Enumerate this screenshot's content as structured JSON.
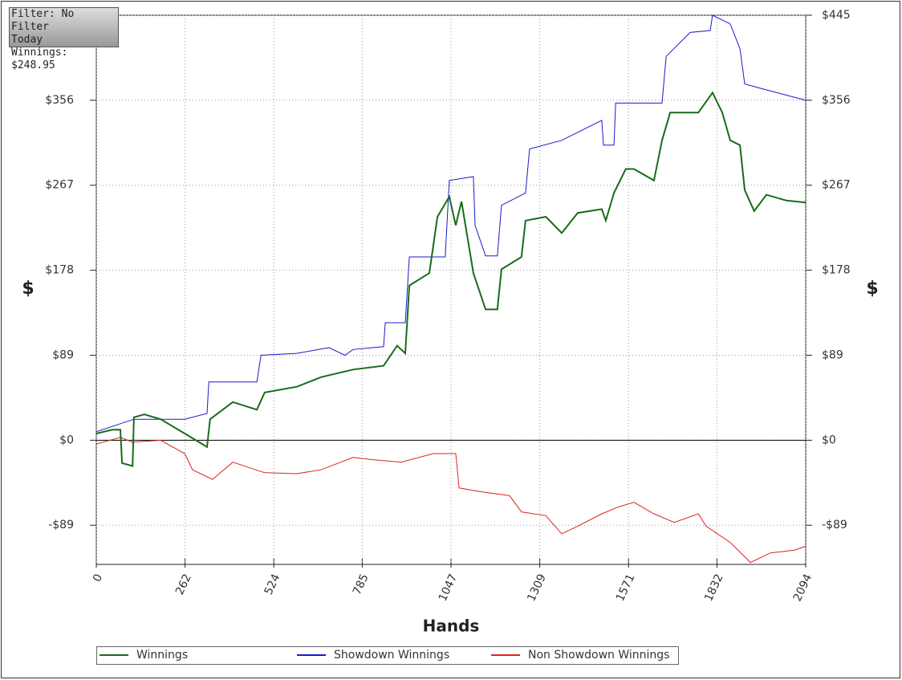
{
  "chart_data": {
    "type": "line",
    "overlay": [
      "Filter: No Filter",
      "Today",
      "Winnings: $248.95"
    ],
    "xlabel": "Hands",
    "ylabel": "$",
    "y2label": "$",
    "xlim": [
      0,
      2094
    ],
    "xticks": [
      0,
      262,
      524,
      785,
      1047,
      1309,
      1571,
      1832,
      2094
    ],
    "ylim": [
      -130,
      445
    ],
    "yticks": [
      {
        "value": -89,
        "label": "-$89"
      },
      {
        "value": 0,
        "label": "$0"
      },
      {
        "value": 89,
        "label": "$89"
      },
      {
        "value": 178,
        "label": "$178"
      },
      {
        "value": 267,
        "label": "$267"
      },
      {
        "value": 356,
        "label": "$356"
      },
      {
        "value": 445,
        "label": "$445"
      }
    ],
    "y2lim": [
      -130,
      445
    ],
    "y2ticks": [
      {
        "value": -89,
        "label": "-$89"
      },
      {
        "value": 0,
        "label": "$0"
      },
      {
        "value": 89,
        "label": "$89"
      },
      {
        "value": 178,
        "label": "$178"
      },
      {
        "value": 267,
        "label": "$267"
      },
      {
        "value": 356,
        "label": "$356"
      },
      {
        "value": 445,
        "label": "$445"
      }
    ],
    "grid": true,
    "legend": "bottom",
    "series": [
      {
        "name": "Winnings",
        "color": "#1a6b1a",
        "x": [
          0,
          47,
          71,
          76,
          107,
          111,
          142,
          190,
          261,
          327,
          336,
          403,
          474,
          497,
          592,
          663,
          758,
          848,
          888,
          912,
          924,
          983,
          1007,
          1042,
          1061,
          1078,
          1113,
          1149,
          1184,
          1196,
          1255,
          1267,
          1327,
          1374,
          1421,
          1492,
          1504,
          1528,
          1563,
          1587,
          1646,
          1670,
          1694,
          1777,
          1819,
          1848,
          1871,
          1900,
          1914,
          1942,
          1978,
          2037,
          2094
        ],
        "values": [
          7,
          11,
          11,
          -24,
          -27,
          24,
          27,
          22,
          7,
          -7,
          22,
          40,
          32,
          50,
          56,
          66,
          74,
          78,
          99,
          91,
          162,
          175,
          234,
          255,
          225,
          250,
          175,
          137,
          137,
          179,
          192,
          230,
          234,
          217,
          238,
          242,
          230,
          259,
          284,
          284,
          272,
          314,
          343,
          343,
          364,
          343,
          314,
          309,
          262,
          240,
          257,
          251,
          248.95
        ]
      },
      {
        "name": "Showdown Winnings",
        "color": "#1a1acc",
        "x": [
          0,
          111,
          261,
          327,
          332,
          474,
          486,
          592,
          687,
          734,
          758,
          848,
          853,
          912,
          924,
          1030,
          1042,
          1113,
          1118,
          1149,
          1184,
          1196,
          1267,
          1279,
          1374,
          1492,
          1497,
          1528,
          1533,
          1670,
          1682,
          1753,
          1812,
          1819,
          1871,
          1900,
          1914,
          1966,
          2094
        ],
        "values": [
          9,
          22,
          22,
          28,
          61,
          61,
          89,
          91,
          97,
          89,
          95,
          98,
          123,
          123,
          192,
          192,
          272,
          276,
          225,
          193,
          193,
          246,
          259,
          305,
          314,
          335,
          309,
          309,
          353,
          353,
          402,
          427,
          429,
          445,
          436,
          410,
          373,
          368,
          356
        ]
      },
      {
        "name": "Non Showdown Winnings",
        "color": "#dd2222",
        "x": [
          0,
          71,
          107,
          190,
          261,
          284,
          343,
          403,
          497,
          592,
          663,
          758,
          805,
          900,
          995,
          1061,
          1071,
          1137,
          1220,
          1255,
          1327,
          1374,
          1421,
          1492,
          1540,
          1587,
          1646,
          1706,
          1777,
          1800,
          1871,
          1931,
          1990,
          2061,
          2094
        ],
        "values": [
          -4,
          3,
          -2,
          0,
          -14,
          -31,
          -41,
          -23,
          -34,
          -35,
          -31,
          -18,
          -20,
          -23,
          -14,
          -14,
          -50,
          -54,
          -58,
          -75,
          -79,
          -98,
          -90,
          -77,
          -70,
          -65,
          -77,
          -86,
          -77,
          -90,
          -107,
          -128,
          -118,
          -115,
          -111
        ]
      }
    ]
  }
}
